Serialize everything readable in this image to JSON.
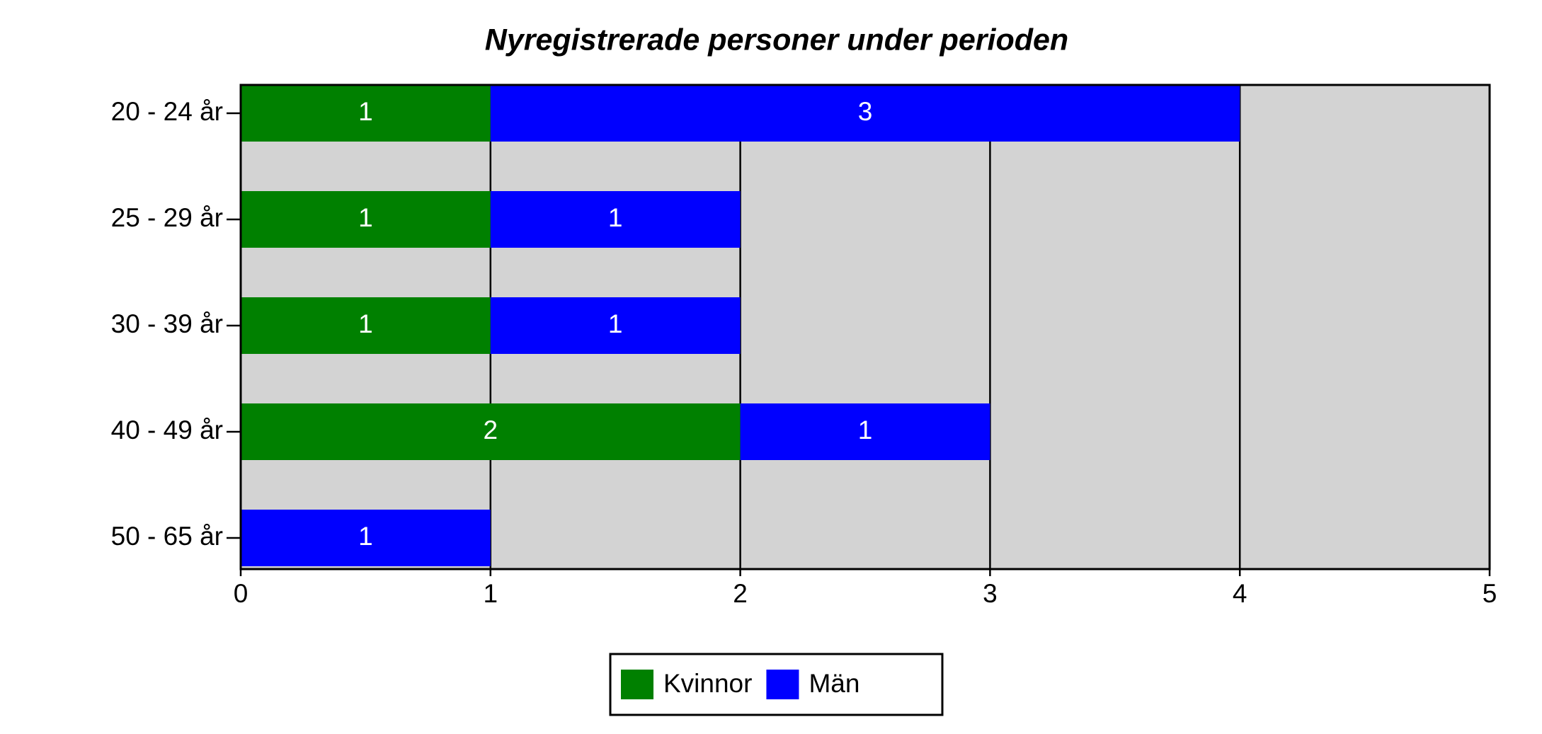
{
  "chart_data": {
    "type": "stacked_barh",
    "title": "Nyregistrerade personer under perioden",
    "categories": [
      "20 - 24 år",
      "25 - 29 år",
      "30 - 39 år",
      "40 - 49 år",
      "50 - 65 år"
    ],
    "series": [
      {
        "name": "Kvinnor",
        "color": "#008000",
        "values": [
          1,
          1,
          1,
          2,
          null
        ]
      },
      {
        "name": "Män",
        "color": "#0000ff",
        "values": [
          3,
          1,
          1,
          1,
          1
        ]
      }
    ],
    "xlim": [
      0,
      5
    ],
    "xticks": [
      0,
      1,
      2,
      3,
      4,
      5
    ],
    "grid": true,
    "legend": "bottom"
  }
}
